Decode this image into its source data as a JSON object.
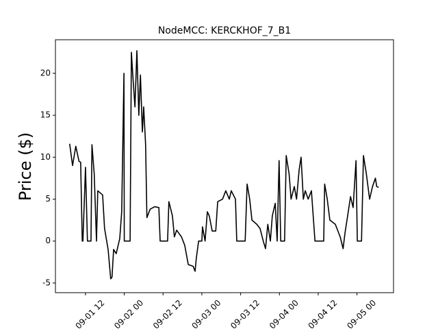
{
  "chart_data": {
    "type": "line",
    "title": "NodeMCC: KERCKHOF_7_B1",
    "y_label": "Price ($)",
    "x": [
      7.1,
      8,
      9,
      10,
      10.5,
      11,
      11.2,
      12,
      12.6,
      13.7,
      14,
      14.7,
      15.4,
      15.8,
      17.3,
      17.9,
      19,
      19.8,
      20.2,
      20.7,
      21.5,
      22.6,
      23.2,
      23.9,
      24,
      25.8,
      26.2,
      26.6,
      27.3,
      27.9,
      28.5,
      29,
      29.6,
      30,
      30.6,
      31,
      32,
      33.4,
      34.7,
      35.1,
      37.4,
      37.8,
      38.9,
      39.5,
      40.2,
      41.7,
      42.7,
      43.8,
      45.3,
      45.9,
      46.3,
      47,
      48,
      48.2,
      49,
      49.7,
      50.3,
      51.2,
      52.3,
      52.9,
      54.4,
      55.4,
      56.5,
      57.1,
      58.4,
      58.8,
      61.4,
      62,
      62.8,
      63.5,
      65,
      66,
      67,
      67.7,
      68.4,
      69.2,
      69.8,
      70.7,
      71.3,
      71.9,
      72.4,
      73.6,
      74.1,
      75,
      75.6,
      76.6,
      77.3,
      78.1,
      78.7,
      79.4,
      80,
      80.9,
      81.9,
      83,
      85.7,
      86,
      86.8,
      87.6,
      89.3,
      90.8,
      91.7,
      92.3,
      93.1,
      94,
      94.8,
      95.7,
      96.1,
      97.4,
      98,
      98.9,
      99.9,
      100.8,
      101.7,
      102.1,
      102.7
    ],
    "series": [
      {
        "color": "#000000",
        "values": [
          11.6,
          9.0,
          11.3,
          9.5,
          9.4,
          0,
          0,
          8.8,
          0,
          0,
          11.5,
          8.0,
          0,
          6.0,
          5.5,
          1.5,
          -1.0,
          -4.5,
          -4.3,
          -1.0,
          -1.5,
          0.3,
          3.5,
          20.0,
          0,
          0,
          22.5,
          20.0,
          16.0,
          22.7,
          15.0,
          19.8,
          13.0,
          16.0,
          11.5,
          2.8,
          3.8,
          4.1,
          4.0,
          0,
          0,
          4.7,
          3.0,
          0.5,
          1.3,
          0.5,
          -0.5,
          -2.8,
          -3.0,
          -3.6,
          -2.0,
          0,
          0,
          1.7,
          0,
          3.5,
          3.0,
          1.2,
          1.2,
          4.7,
          5.0,
          6.0,
          5.0,
          6.0,
          5.0,
          0,
          0,
          6.8,
          5.0,
          2.5,
          2.0,
          1.5,
          0,
          -0.9,
          2.0,
          0,
          3.0,
          4.5,
          0,
          9.6,
          0,
          0,
          10.2,
          8.0,
          5.0,
          6.5,
          5.0,
          8.5,
          10.0,
          5.0,
          6.0,
          5.0,
          6.0,
          0,
          0,
          6.8,
          5.0,
          2.5,
          2.0,
          0.5,
          -0.9,
          1.0,
          3.0,
          5.3,
          4.0,
          9.6,
          0,
          0,
          10.2,
          8.0,
          5.0,
          6.5,
          7.5,
          6.5,
          6.4
        ]
      }
    ],
    "xlim": [
      2.7,
      107.3
    ],
    "xticks": [
      {
        "value": 12,
        "label": "09-01 12"
      },
      {
        "value": 24,
        "label": "09-02 00"
      },
      {
        "value": 36,
        "label": "09-02 12"
      },
      {
        "value": 48,
        "label": "09-03 00"
      },
      {
        "value": 60,
        "label": "09-03 12"
      },
      {
        "value": 72,
        "label": "09-04 00"
      },
      {
        "value": 84,
        "label": "09-04 12"
      },
      {
        "value": 96,
        "label": "09-05 00"
      }
    ],
    "ylim": [
      -6.15,
      24.0
    ],
    "yticks": [
      -5,
      0,
      5,
      10,
      15,
      20
    ]
  }
}
